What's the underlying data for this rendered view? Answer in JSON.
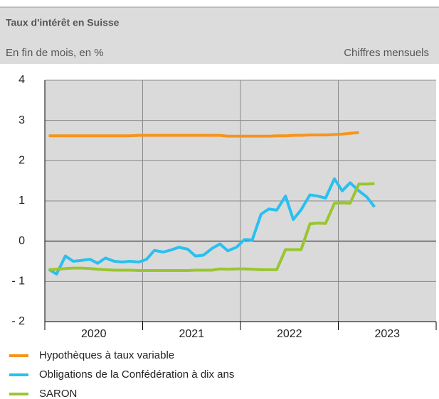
{
  "chart_data": {
    "type": "line",
    "title": "Taux d'intérêt en Suisse",
    "subtitle": "En fin de mois, en %",
    "note": "Chiffres mensuels",
    "x": [
      2020.04,
      2020.12,
      2020.21,
      2020.29,
      2020.37,
      2020.46,
      2020.54,
      2020.62,
      2020.71,
      2020.79,
      2020.87,
      2020.96,
      2021.04,
      2021.12,
      2021.21,
      2021.29,
      2021.37,
      2021.46,
      2021.54,
      2021.62,
      2021.71,
      2021.79,
      2021.87,
      2021.96,
      2022.04,
      2022.12,
      2022.21,
      2022.29,
      2022.37,
      2022.46,
      2022.54,
      2022.62,
      2022.71,
      2022.79,
      2022.87,
      2022.96,
      2023.04,
      2023.12,
      2023.21,
      2023.29,
      2023.37
    ],
    "series": [
      {
        "name": "Hypothèques à taux variable",
        "color": "#f7941d",
        "values": [
          2.62,
          2.62,
          2.62,
          2.62,
          2.62,
          2.62,
          2.62,
          2.62,
          2.62,
          2.62,
          2.62,
          2.63,
          2.63,
          2.63,
          2.63,
          2.63,
          2.63,
          2.63,
          2.63,
          2.63,
          2.63,
          2.63,
          2.61,
          2.61,
          2.61,
          2.61,
          2.61,
          2.61,
          2.62,
          2.62,
          2.63,
          2.63,
          2.64,
          2.64,
          2.64,
          2.65,
          2.66,
          2.68,
          2.7,
          null,
          null
        ]
      },
      {
        "name": "Obligations de la Confédération à dix ans",
        "color": "#29c0ef",
        "values": [
          -0.7,
          -0.82,
          -0.37,
          -0.5,
          -0.48,
          -0.45,
          -0.55,
          -0.42,
          -0.5,
          -0.52,
          -0.5,
          -0.52,
          -0.45,
          -0.23,
          -0.27,
          -0.22,
          -0.15,
          -0.2,
          -0.37,
          -0.35,
          -0.18,
          -0.07,
          -0.24,
          -0.15,
          0.04,
          0.03,
          0.67,
          0.8,
          0.77,
          1.12,
          0.54,
          0.78,
          1.15,
          1.12,
          1.07,
          1.55,
          1.25,
          1.45,
          1.25,
          1.1,
          0.85
        ]
      },
      {
        "name": "SARON",
        "color": "#9ac531",
        "values": [
          -0.71,
          -0.7,
          -0.68,
          -0.67,
          -0.67,
          -0.68,
          -0.7,
          -0.71,
          -0.72,
          -0.72,
          -0.72,
          -0.73,
          -0.73,
          -0.73,
          -0.73,
          -0.73,
          -0.73,
          -0.73,
          -0.72,
          -0.72,
          -0.72,
          -0.69,
          -0.7,
          -0.69,
          -0.69,
          -0.7,
          -0.71,
          -0.71,
          -0.71,
          -0.21,
          -0.21,
          -0.21,
          0.43,
          0.45,
          0.44,
          0.94,
          0.95,
          0.94,
          1.42,
          1.42,
          1.43
        ]
      }
    ],
    "xlim": [
      2020,
      2024
    ],
    "xticks": [
      2020,
      2021,
      2022,
      2023
    ],
    "ylim": [
      -2,
      4
    ],
    "yticks": [
      {
        "value": -2,
        "label": "- 2"
      },
      {
        "value": -1,
        "label": "- 1"
      },
      0,
      1,
      2,
      3,
      4
    ],
    "grid": true
  }
}
